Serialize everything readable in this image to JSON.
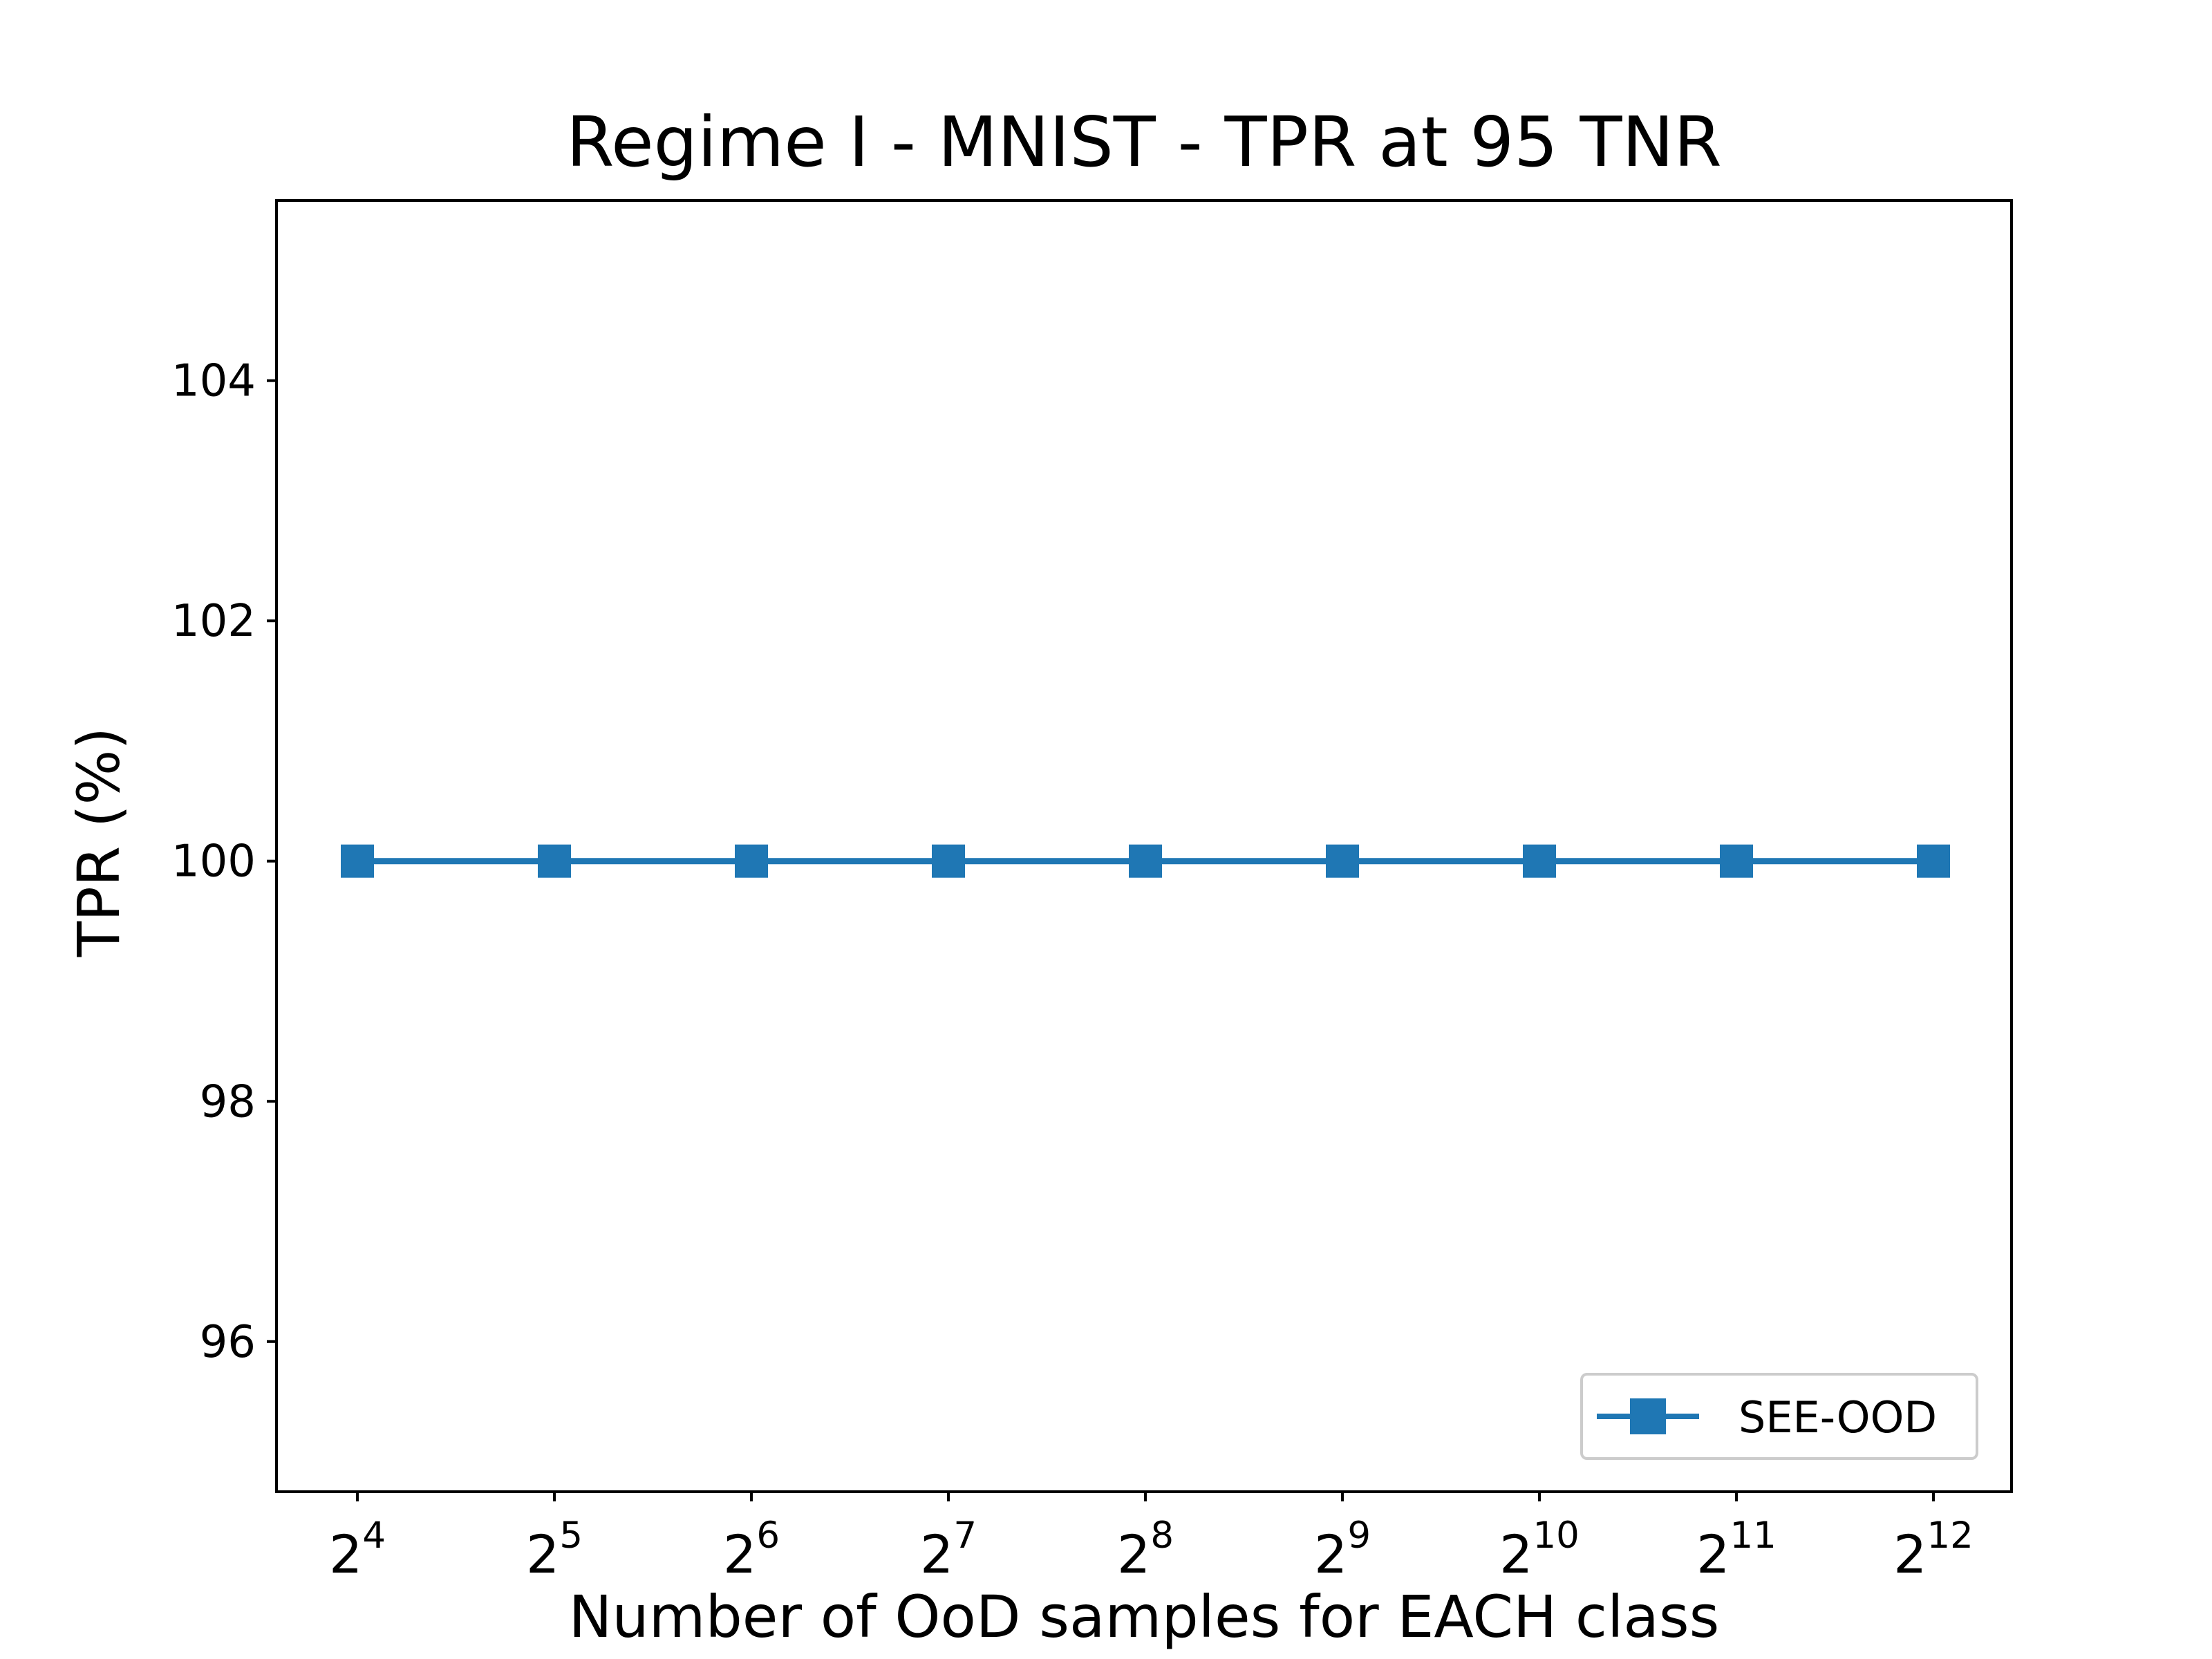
{
  "chart_data": {
    "type": "line",
    "title": "Regime I - MNIST - TPR at 95 TNR",
    "xlabel": "Number of OoD samples for EACH class",
    "ylabel": "TPR (%)",
    "x_scale": "log2",
    "x": [
      16,
      32,
      64,
      128,
      256,
      512,
      1024,
      2048,
      4096
    ],
    "x_tick_labels": [
      {
        "base": "2",
        "exp": "4"
      },
      {
        "base": "2",
        "exp": "5"
      },
      {
        "base": "2",
        "exp": "6"
      },
      {
        "base": "2",
        "exp": "7"
      },
      {
        "base": "2",
        "exp": "8"
      },
      {
        "base": "2",
        "exp": "9"
      },
      {
        "base": "2",
        "exp": "10"
      },
      {
        "base": "2",
        "exp": "11"
      },
      {
        "base": "2",
        "exp": "12"
      }
    ],
    "ylim": [
      94.75,
      105.5
    ],
    "y_ticks": [
      96,
      98,
      100,
      102,
      104
    ],
    "y_tick_labels": [
      "96",
      "98",
      "100",
      "102",
      "104"
    ],
    "grid": false,
    "legend_position": "lower-right",
    "series": [
      {
        "name": "SEE-OOD",
        "color": "#1f77b4",
        "marker": "square",
        "values": [
          100,
          100,
          100,
          100,
          100,
          100,
          100,
          100,
          100
        ]
      }
    ]
  }
}
